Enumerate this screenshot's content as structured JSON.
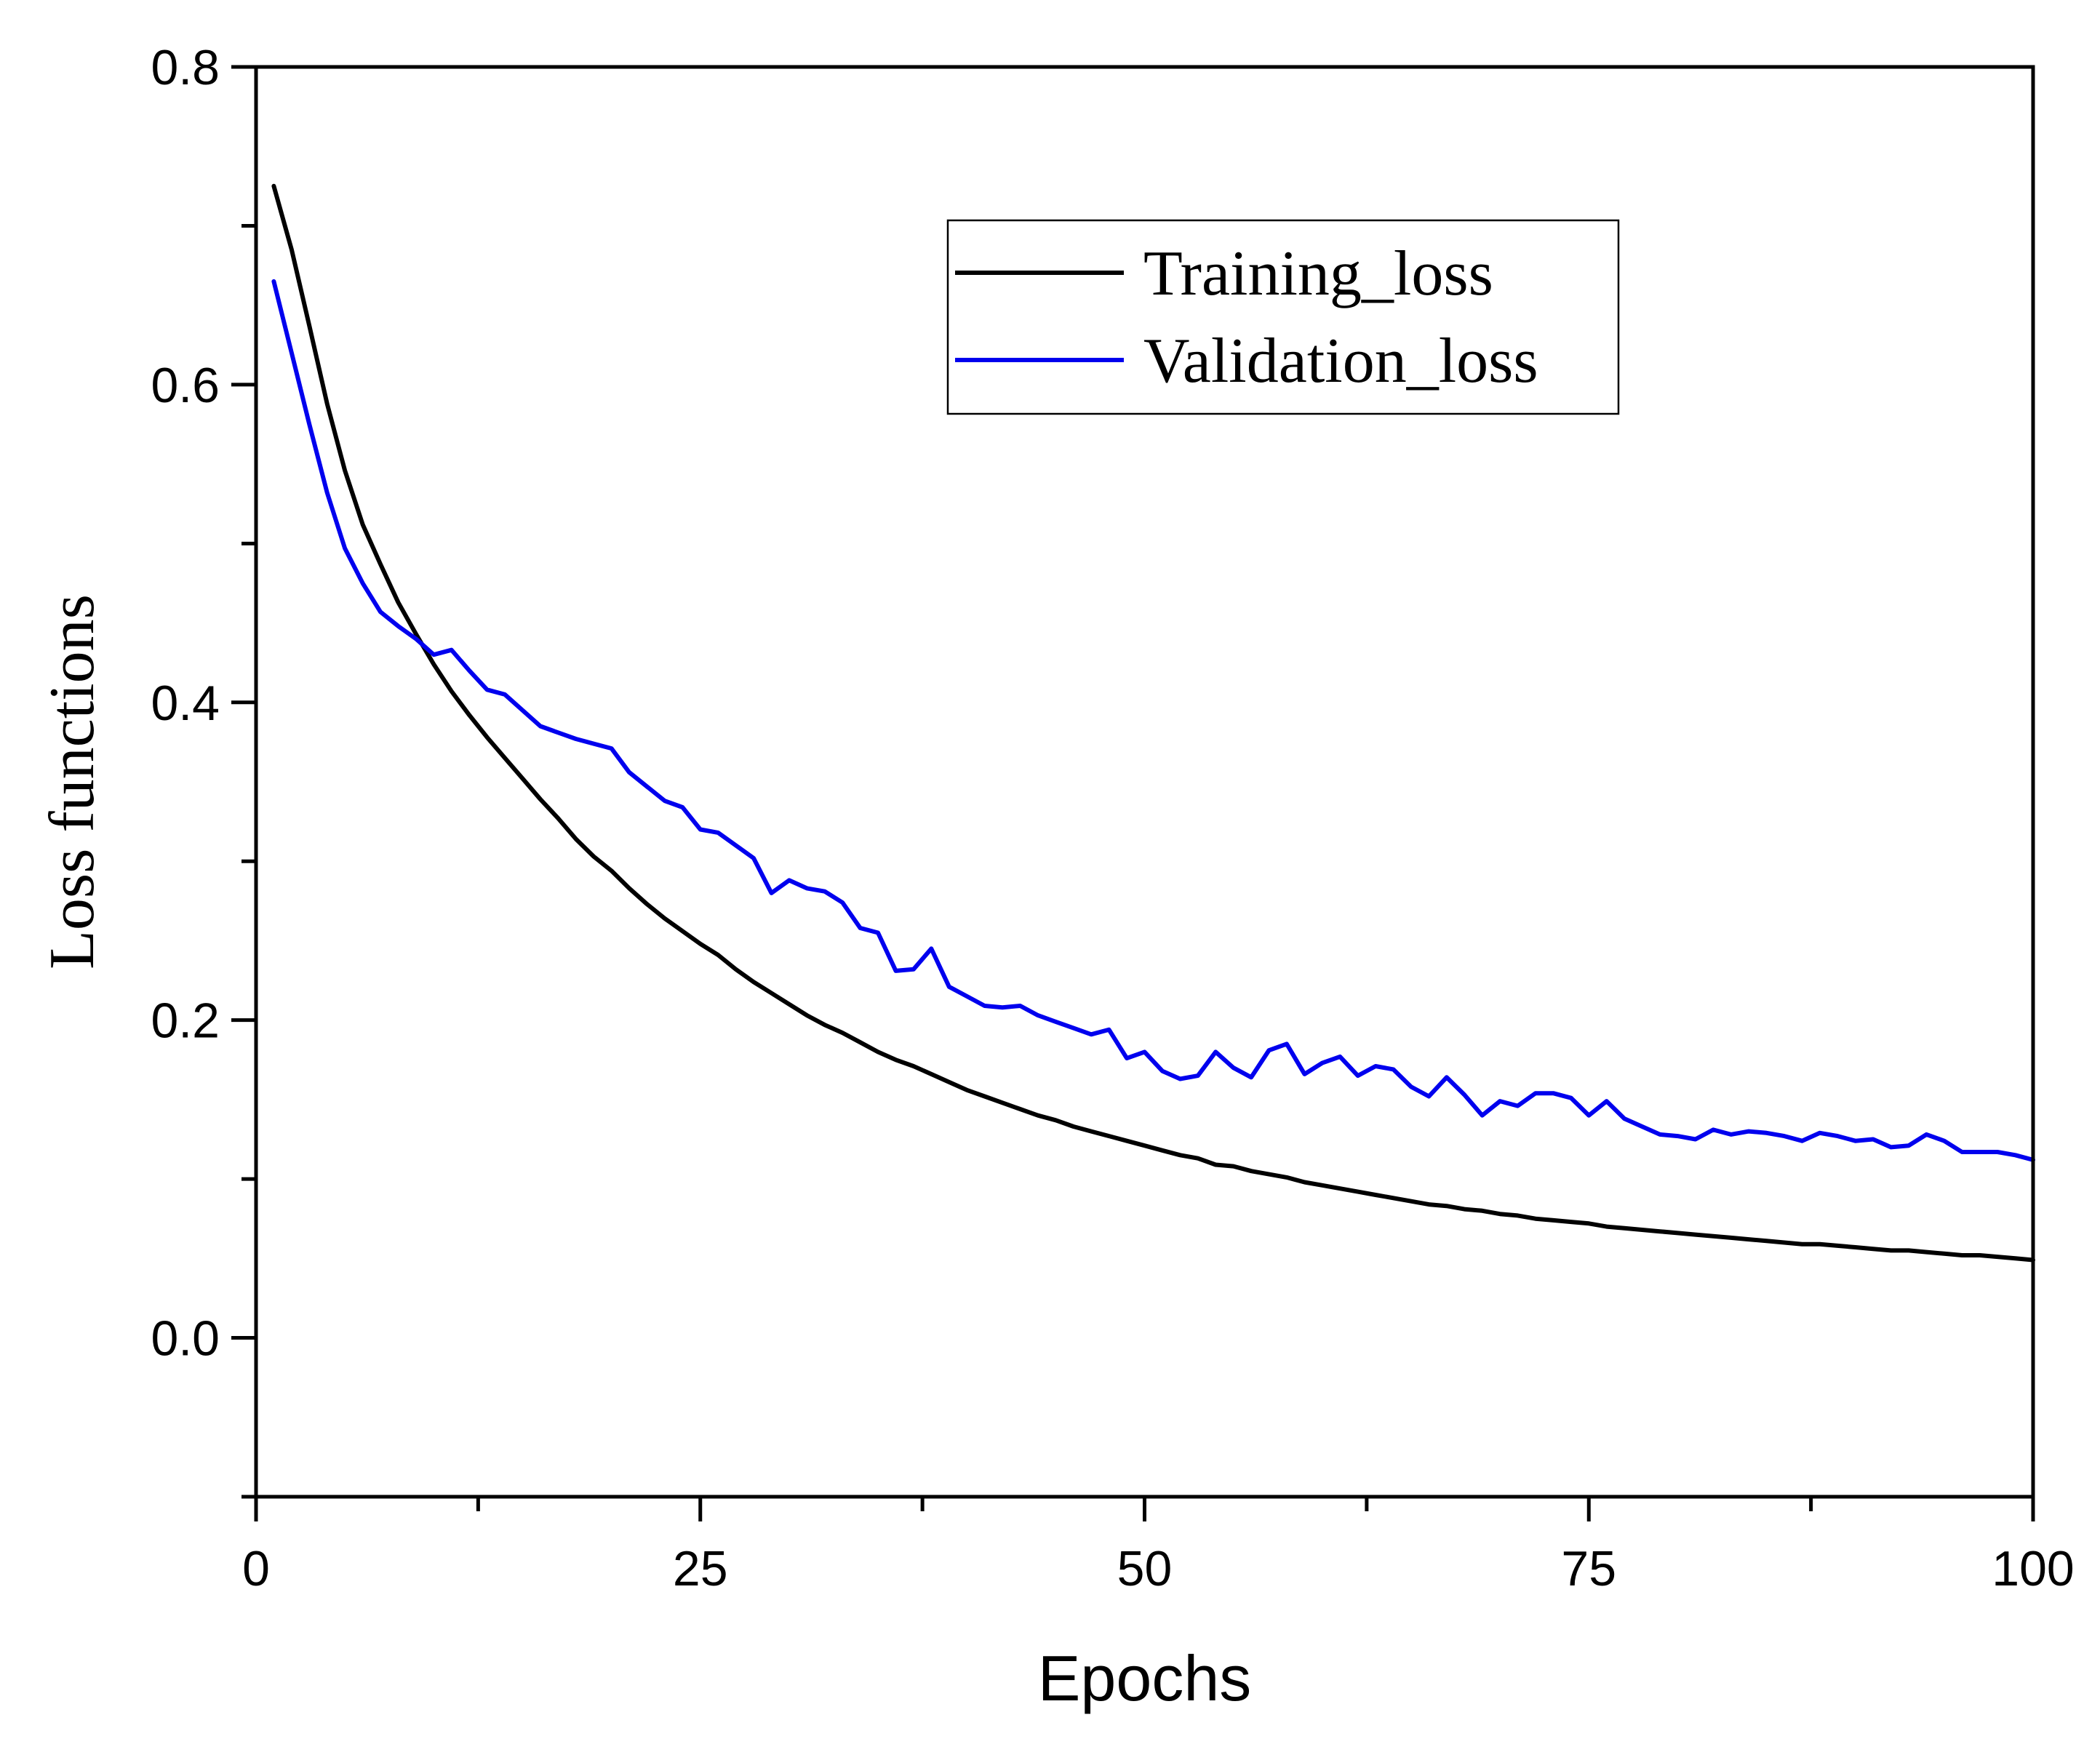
{
  "chart_data": {
    "type": "line",
    "title": "",
    "xlabel": "Epochs",
    "ylabel": "Loss functions",
    "xlim": [
      0,
      100
    ],
    "ylim": [
      -0.1,
      0.8
    ],
    "x_major_ticks": [
      0,
      25,
      50,
      75,
      100
    ],
    "x_tick_labels": [
      "0",
      "25",
      "50",
      "75",
      "100"
    ],
    "x_minor_ticks": [
      12.5,
      37.5,
      62.5,
      87.5
    ],
    "y_major_ticks": [
      0.0,
      0.2,
      0.4,
      0.6,
      0.8
    ],
    "y_tick_labels": [
      "0.0",
      "0.2",
      "0.4",
      "0.6",
      "0.8"
    ],
    "y_minor_ticks": [
      -0.1,
      0.1,
      0.3,
      0.5,
      0.7
    ],
    "grid": false,
    "legend_position": "top-right",
    "x": [
      1,
      2,
      3,
      4,
      5,
      6,
      7,
      8,
      9,
      10,
      11,
      12,
      13,
      14,
      15,
      16,
      17,
      18,
      19,
      20,
      21,
      22,
      23,
      24,
      25,
      26,
      27,
      28,
      29,
      30,
      31,
      32,
      33,
      34,
      35,
      36,
      37,
      38,
      39,
      40,
      41,
      42,
      43,
      44,
      45,
      46,
      47,
      48,
      49,
      50,
      51,
      52,
      53,
      54,
      55,
      56,
      57,
      58,
      59,
      60,
      61,
      62,
      63,
      64,
      65,
      66,
      67,
      68,
      69,
      70,
      71,
      72,
      73,
      74,
      75,
      76,
      77,
      78,
      79,
      80,
      81,
      82,
      83,
      84,
      85,
      86,
      87,
      88,
      89,
      90,
      91,
      92,
      93,
      94,
      95,
      96,
      97,
      98,
      99,
      100
    ],
    "series": [
      {
        "name": "Training_loss",
        "color": "#000000",
        "values": [
          0.725,
          0.685,
          0.637,
          0.588,
          0.546,
          0.512,
          0.487,
          0.463,
          0.443,
          0.424,
          0.407,
          0.392,
          0.378,
          0.365,
          0.352,
          0.339,
          0.327,
          0.314,
          0.303,
          0.294,
          0.283,
          0.273,
          0.264,
          0.256,
          0.248,
          0.241,
          0.232,
          0.224,
          0.217,
          0.21,
          0.203,
          0.197,
          0.192,
          0.186,
          0.18,
          0.175,
          0.171,
          0.166,
          0.161,
          0.156,
          0.152,
          0.148,
          0.144,
          0.14,
          0.137,
          0.133,
          0.13,
          0.127,
          0.124,
          0.121,
          0.118,
          0.115,
          0.113,
          0.109,
          0.108,
          0.105,
          0.103,
          0.101,
          0.098,
          0.096,
          0.094,
          0.092,
          0.09,
          0.088,
          0.086,
          0.084,
          0.083,
          0.081,
          0.08,
          0.078,
          0.077,
          0.075,
          0.074,
          0.073,
          0.072,
          0.07,
          0.069,
          0.068,
          0.067,
          0.066,
          0.065,
          0.064,
          0.063,
          0.062,
          0.061,
          0.06,
          0.059,
          0.059,
          0.058,
          0.057,
          0.056,
          0.055,
          0.055,
          0.054,
          0.053,
          0.052,
          0.052,
          0.051,
          0.05,
          0.049
        ]
      },
      {
        "name": "Validation_loss",
        "color": "#0000ee",
        "values": [
          0.665,
          0.62,
          0.575,
          0.532,
          0.497,
          0.475,
          0.457,
          0.448,
          0.44,
          0.43,
          0.433,
          0.42,
          0.408,
          0.405,
          0.395,
          0.385,
          0.381,
          0.377,
          0.374,
          0.371,
          0.356,
          0.347,
          0.338,
          0.334,
          0.32,
          0.318,
          0.31,
          0.302,
          0.28,
          0.288,
          0.283,
          0.281,
          0.274,
          0.258,
          0.255,
          0.231,
          0.232,
          0.245,
          0.221,
          0.215,
          0.209,
          0.208,
          0.209,
          0.203,
          0.199,
          0.195,
          0.191,
          0.194,
          0.176,
          0.18,
          0.168,
          0.163,
          0.165,
          0.18,
          0.17,
          0.164,
          0.181,
          0.185,
          0.166,
          0.173,
          0.177,
          0.165,
          0.171,
          0.169,
          0.158,
          0.152,
          0.164,
          0.153,
          0.14,
          0.149,
          0.146,
          0.154,
          0.154,
          0.151,
          0.14,
          0.149,
          0.138,
          0.133,
          0.128,
          0.127,
          0.125,
          0.131,
          0.128,
          0.13,
          0.129,
          0.127,
          0.124,
          0.129,
          0.127,
          0.124,
          0.125,
          0.12,
          0.121,
          0.128,
          0.124,
          0.117,
          0.117,
          0.117,
          0.115,
          0.112
        ]
      }
    ]
  }
}
